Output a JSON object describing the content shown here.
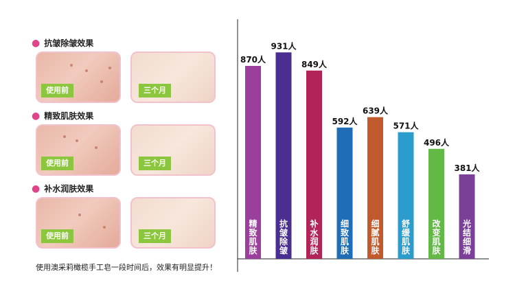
{
  "panel": {
    "sections": [
      {
        "title": "抗皱除皱效果",
        "before_label": "使用前",
        "after_label": "三个月"
      },
      {
        "title": "精致肌肤效果",
        "before_label": "使用前",
        "after_label": "三个月"
      },
      {
        "title": "补水润肤效果",
        "before_label": "使用前",
        "after_label": "三个月"
      }
    ],
    "footnote": "使用澳采莉橄榄手工皂一段时间后，效果有明显提升！"
  },
  "chart_data": {
    "type": "bar",
    "title": "",
    "xlabel": "",
    "ylabel": "",
    "value_suffix": "人",
    "categories": [
      "精致肌肤",
      "抗皱除皱",
      "补水润肤",
      "细致肌肤",
      "细腻肌肤",
      "舒缓肌肤",
      "改变肌肤",
      "光结细滑"
    ],
    "values": [
      870,
      931,
      849,
      592,
      639,
      571,
      496,
      381
    ],
    "colors": [
      "#9b3f9c",
      "#4a2f90",
      "#b2235a",
      "#1f6db5",
      "#c0592b",
      "#2b9ccc",
      "#62b946",
      "#7a3f99"
    ],
    "ylim": [
      0,
      1000
    ],
    "grid": false
  }
}
